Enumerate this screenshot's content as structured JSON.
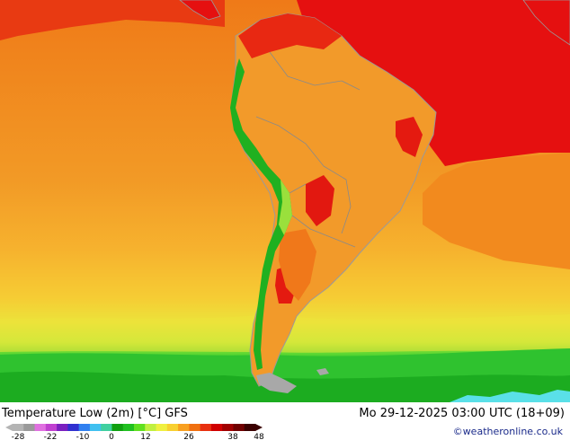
{
  "title": "Temperature Low (2m) [°C] GFS",
  "datetime": "Mo 29-12-2025 03:00 UTC (18+09)",
  "credit": "©weatheronline.co.uk",
  "legend": {
    "ticks": [
      "-28",
      "-22",
      "-10",
      "0",
      "12",
      "26",
      "38",
      "48"
    ],
    "colors": [
      "#b4b4b4",
      "#9a9a9a",
      "#e070e0",
      "#c040d0",
      "#7a20c0",
      "#3030d0",
      "#3080f0",
      "#40c0f0",
      "#40d0a0",
      "#10a010",
      "#20c020",
      "#60e020",
      "#c0f040",
      "#f0f040",
      "#f8d030",
      "#f8a020",
      "#f07010",
      "#e83010",
      "#d00000",
      "#a00000",
      "#700000",
      "#3a0000"
    ]
  },
  "colors": {
    "hot": "#e51010",
    "warm": "#f07818",
    "mild": "#f7a62a",
    "cool": "#f7c232",
    "yellow": "#eee43a",
    "green": "#2fc22f",
    "darkgreen": "#10960f",
    "land": "#f2992a",
    "ice": "#5ae0e8"
  }
}
